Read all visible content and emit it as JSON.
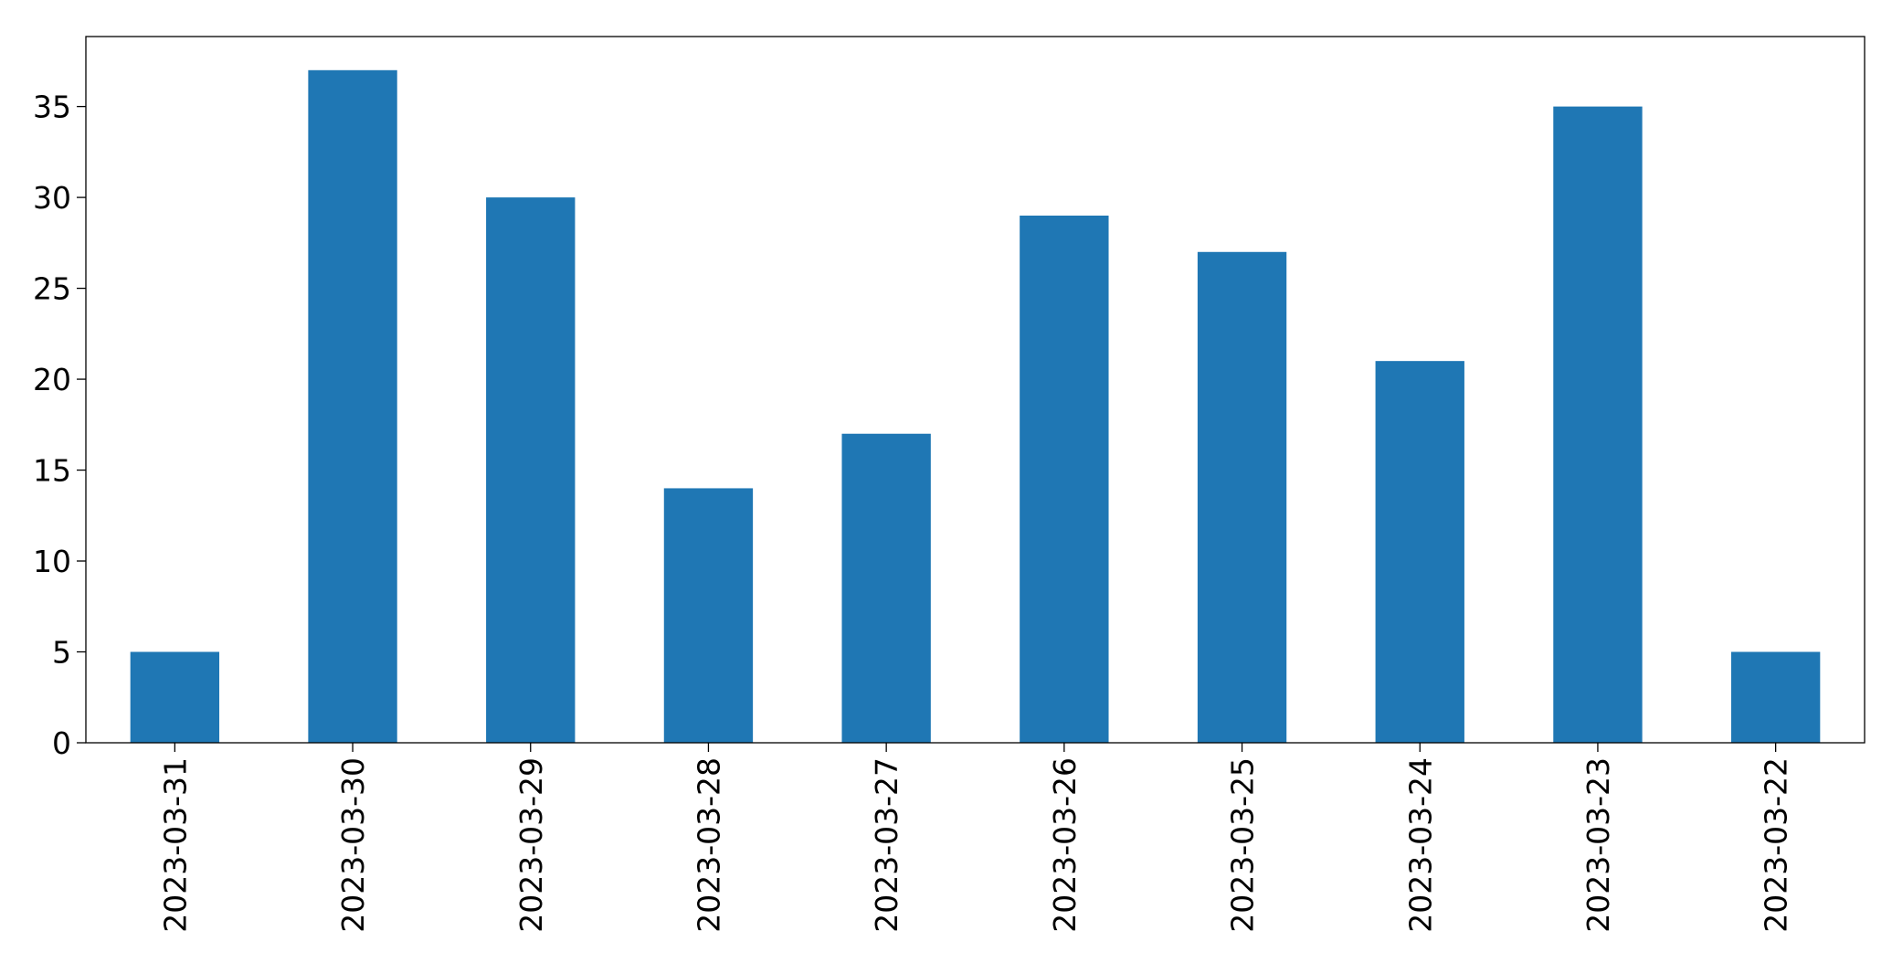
{
  "chart_data": {
    "type": "bar",
    "title": "",
    "xlabel": "",
    "ylabel": "",
    "categories": [
      "2023-03-31",
      "2023-03-30",
      "2023-03-29",
      "2023-03-28",
      "2023-03-27",
      "2023-03-26",
      "2023-03-25",
      "2023-03-24",
      "2023-03-23",
      "2023-03-22"
    ],
    "values": [
      5,
      37,
      30,
      14,
      17,
      29,
      27,
      21,
      35,
      5
    ],
    "ylim": [
      0,
      38.85
    ],
    "yticks": [
      0,
      5,
      10,
      15,
      20,
      25,
      30,
      35
    ],
    "ytick_labels": [
      "0",
      "5",
      "10",
      "15",
      "20",
      "25",
      "30",
      "35"
    ],
    "bar_color": "#1f77b4",
    "grid": false,
    "legend": "none"
  }
}
